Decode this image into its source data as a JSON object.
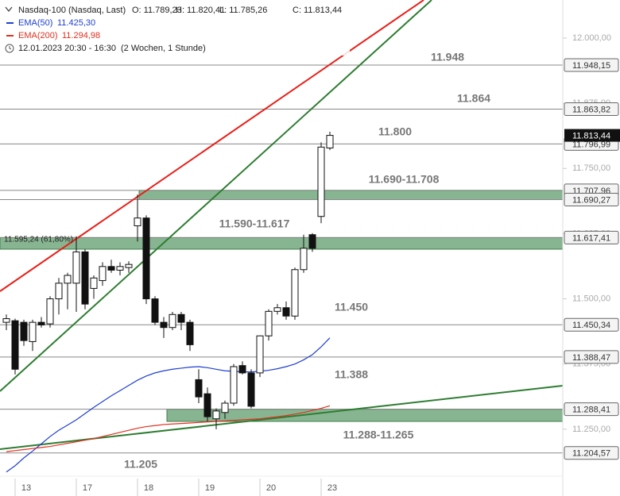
{
  "chart_data": {
    "type": "candlestick",
    "title": "Nasdaq-100 (Nasdaq, Last)",
    "ohlc_text": [
      "O: 11.789,23",
      "H: 11.820,41",
      "L: 11.785,26",
      "C: 11.813,44"
    ],
    "period": "12.01.2023 20:30 - 16:30",
    "period_note": "(2 Wochen, 1 Stunde)",
    "categories": [
      null,
      "13",
      null,
      null,
      null,
      null,
      null,
      null,
      "17",
      null,
      null,
      null,
      null,
      null,
      null,
      "18",
      null,
      null,
      null,
      null,
      null,
      null,
      "19",
      null,
      null,
      null,
      null,
      null,
      null,
      "20",
      null,
      null,
      null,
      null,
      null,
      null,
      "23",
      null
    ],
    "open": [
      11455,
      11458,
      11455,
      11418,
      11455,
      11452,
      11500,
      11530,
      11530,
      11590,
      11520,
      11535,
      11562,
      11555,
      11560,
      11640,
      11655,
      11500,
      11455,
      11445,
      11470,
      11455,
      11345,
      11318,
      11270,
      11282,
      11300,
      11372,
      11358,
      11358,
      11429,
      11476,
      11483,
      11467,
      11556,
      11623,
      11658,
      11789.23
    ],
    "high": [
      11470,
      11462,
      11460,
      11460,
      11465,
      11505,
      11540,
      11550,
      11620,
      11595,
      11545,
      11570,
      11575,
      11570,
      11572,
      11700,
      11660,
      11505,
      11465,
      11475,
      11475,
      11460,
      11365,
      11330,
      11290,
      11305,
      11375,
      11380,
      11365,
      11430,
      11480,
      11490,
      11495,
      11560,
      11623,
      11626,
      11800,
      11820.41
    ],
    "low": [
      11440,
      11355,
      11410,
      11400,
      11445,
      11445,
      11470,
      11480,
      11475,
      11480,
      11500,
      11525,
      11550,
      11545,
      11550,
      11610,
      11490,
      11450,
      11425,
      11440,
      11440,
      11400,
      11300,
      11265,
      11250,
      11270,
      11295,
      11355,
      11290,
      11350,
      11420,
      11470,
      11460,
      11460,
      11550,
      11590,
      11645,
      11785.26
    ],
    "close": [
      11462,
      11365,
      11420,
      11455,
      11450,
      11500,
      11530,
      11545,
      11590,
      11490,
      11540,
      11562,
      11555,
      11562,
      11566,
      11655,
      11500,
      11455,
      11445,
      11470,
      11455,
      11412,
      11312,
      11274,
      11285,
      11300,
      11370,
      11358,
      11294,
      11429,
      11476,
      11483,
      11467,
      11556,
      11597,
      11597,
      11791,
      11813.44
    ],
    "series": [
      {
        "name": "EMA(50)",
        "last_label": "11.425,30",
        "color": "#1f3fd1",
        "values": [
          11168,
          11180,
          11195,
          11208,
          11222,
          11236,
          11248,
          11258,
          11268,
          11280,
          11292,
          11303,
          11314,
          11324,
          11334,
          11344,
          11352,
          11358,
          11362,
          11365,
          11367,
          11369,
          11370,
          11368,
          11365,
          11362,
          11361,
          11360,
          11360,
          11361,
          11363,
          11366,
          11370,
          11375,
          11383,
          11393,
          11408,
          11425.3
        ]
      },
      {
        "name": "EMA(200)",
        "last_label": "11.294,98",
        "color": "#e03020",
        "values": [
          11207,
          11209,
          11211,
          11213,
          11215,
          11217,
          11220,
          11223,
          11226,
          11229,
          11232,
          11236,
          11240,
          11244,
          11248,
          11252,
          11255,
          11257,
          11259,
          11260,
          11261,
          11262,
          11263,
          11264,
          11265,
          11266,
          11267,
          11268,
          11269,
          11270,
          11272,
          11274,
          11276,
          11279,
          11282,
          11286,
          11290,
          11294.98
        ]
      }
    ],
    "ylim": [
      11160,
      12073
    ],
    "yticks": [
      {
        "value": 11250,
        "label": "11.250,00"
      },
      {
        "value": 11375,
        "label": "11.375,00"
      },
      {
        "value": 11500,
        "label": "11.500,00"
      },
      {
        "value": 11625,
        "label": "11.625,00"
      },
      {
        "value": 11750,
        "label": "11.750,00"
      },
      {
        "value": 11875,
        "label": "11.875,00"
      },
      {
        "value": 12000,
        "label": "12.000,00"
      }
    ],
    "levels": [
      {
        "value": 11948.15,
        "label": "11.948,15"
      },
      {
        "value": 11863.82,
        "label": "11.863,82"
      },
      {
        "value": 11796.99,
        "label": "11.796,99"
      },
      {
        "value": 11707.96,
        "label": "11.707,96"
      },
      {
        "value": 11690.27,
        "label": "11.690,27"
      },
      {
        "value": 11617.41,
        "label": "11.617,41"
      },
      {
        "value": 11450.34,
        "label": "11.450,34"
      },
      {
        "value": 11388.47,
        "label": "11.388,47"
      },
      {
        "value": 11288.41,
        "label": "11.288,41"
      },
      {
        "value": 11204.57,
        "label": "11.204,57"
      }
    ],
    "current": {
      "value": 11813.44,
      "label": "11.813,44"
    },
    "zones": [
      {
        "low": 11690.27,
        "high": 11707.96
      },
      {
        "low": 11595.24,
        "high": 11617.41
      },
      {
        "low": 11265,
        "high": 11288.41
      }
    ],
    "fib_label": "11.595,24 (61,80%)",
    "annotations": [
      "11.948",
      "11.864",
      "11.800",
      "11.690-11.708",
      "11.590-11.617",
      "11.450",
      "11.388",
      "11.288-11.265",
      "11.205"
    ]
  }
}
